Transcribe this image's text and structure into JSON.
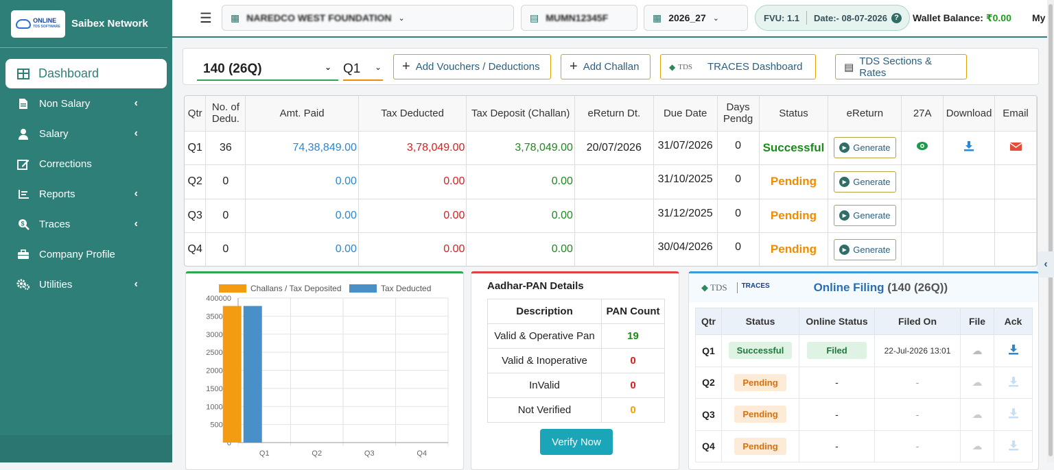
{
  "sidebar": {
    "logo_line1": "ONLINE",
    "logo_line2": "TDS SOFTWARE",
    "brand": "Saibex Network",
    "items": [
      {
        "label": "Dashboard"
      },
      {
        "label": "Non Salary"
      },
      {
        "label": "Salary"
      },
      {
        "label": "Corrections"
      },
      {
        "label": "Reports"
      },
      {
        "label": "Traces"
      },
      {
        "label": "Company Profile"
      },
      {
        "label": "Utilities"
      }
    ]
  },
  "topbar": {
    "company": "NAREDCO WEST FOUNDATION",
    "tan": "MUMN12345F",
    "year": "2026_27",
    "fvu": "FVU: 1.1",
    "date": "Date:- 08-07-2026",
    "wallet_label": "Wallet Balance:",
    "wallet_value": "₹0.00",
    "my": "My"
  },
  "toolbar": {
    "form": "140 (26Q)",
    "quarter": "Q1",
    "add_vouchers": "Add Vouchers / Deductions",
    "add_challan": "Add Challan",
    "traces_dashboard": "TRACES Dashboard",
    "sections_rates": "TDS Sections & Rates"
  },
  "main_table": {
    "headers": [
      "Qtr",
      "No. of Dedu.",
      "Amt. Paid",
      "Tax Deducted",
      "Tax Deposit (Challan)",
      "eReturn Dt.",
      "Due Date",
      "Days Pendg",
      "Status",
      "eReturn",
      "27A",
      "Download",
      "Email"
    ],
    "generate_label": "Generate",
    "rows": [
      {
        "qtr": "Q1",
        "dedu": "36",
        "paid": "74,38,849.00",
        "deducted": "3,78,049.00",
        "deposit": "3,78,049.00",
        "ereturn_dt": "20/07/2026",
        "due": "31/07/2026",
        "days": "0",
        "status": "Successful"
      },
      {
        "qtr": "Q2",
        "dedu": "0",
        "paid": "0.00",
        "deducted": "0.00",
        "deposit": "0.00",
        "ereturn_dt": "",
        "due": "31/10/2025",
        "days": "0",
        "status": "Pending"
      },
      {
        "qtr": "Q3",
        "dedu": "0",
        "paid": "0.00",
        "deducted": "0.00",
        "deposit": "0.00",
        "ereturn_dt": "",
        "due": "31/12/2025",
        "days": "0",
        "status": "Pending"
      },
      {
        "qtr": "Q4",
        "dedu": "0",
        "paid": "0.00",
        "deducted": "0.00",
        "deposit": "0.00",
        "ereturn_dt": "",
        "due": "30/04/2026",
        "days": "0",
        "status": "Pending"
      }
    ]
  },
  "chart_data": {
    "type": "bar",
    "categories": [
      "Q1",
      "Q2",
      "Q3",
      "Q4"
    ],
    "series": [
      {
        "name": "Challans / Tax Deposited",
        "values": [
          378049,
          0,
          0,
          0
        ],
        "color": "#f39c12"
      },
      {
        "name": "Tax Deducted",
        "values": [
          378049,
          0,
          0,
          0
        ],
        "color": "#4a90c8"
      }
    ],
    "ylim": [
      0,
      400000
    ],
    "yticks": [
      "400000",
      "350000",
      "300000",
      "250000",
      "200000",
      "150000",
      "100000",
      "50000",
      "0"
    ],
    "legend": "top"
  },
  "pan": {
    "title": "Aadhar-PAN Details",
    "col_desc": "Description",
    "col_count": "PAN Count",
    "rows": [
      {
        "desc": "Valid & Operative Pan",
        "count": "19",
        "color": "#1a8a1a"
      },
      {
        "desc": "Valid & Inoperative",
        "count": "0",
        "color": "#e01b1b"
      },
      {
        "desc": "InValid",
        "count": "0",
        "color": "#e01b1b"
      },
      {
        "desc": "Not Verified",
        "count": "0",
        "color": "#f0a000"
      }
    ],
    "verify_label": "Verify Now"
  },
  "filing": {
    "tds_logo": "TDS",
    "traces_logo": "TRACES",
    "title": "Online Filing",
    "title_form": "(140 (26Q))",
    "headers": [
      "Qtr",
      "Status",
      "Online Status",
      "Filed On",
      "File",
      "Ack"
    ],
    "rows": [
      {
        "qtr": "Q1",
        "status": "Successful",
        "online": "Filed",
        "filed_on": "22-Jul-2026 13:01"
      },
      {
        "qtr": "Q2",
        "status": "Pending",
        "online": "-",
        "filed_on": "-"
      },
      {
        "qtr": "Q3",
        "status": "Pending",
        "online": "-",
        "filed_on": "-"
      },
      {
        "qtr": "Q4",
        "status": "Pending",
        "online": "-",
        "filed_on": "-"
      }
    ]
  }
}
